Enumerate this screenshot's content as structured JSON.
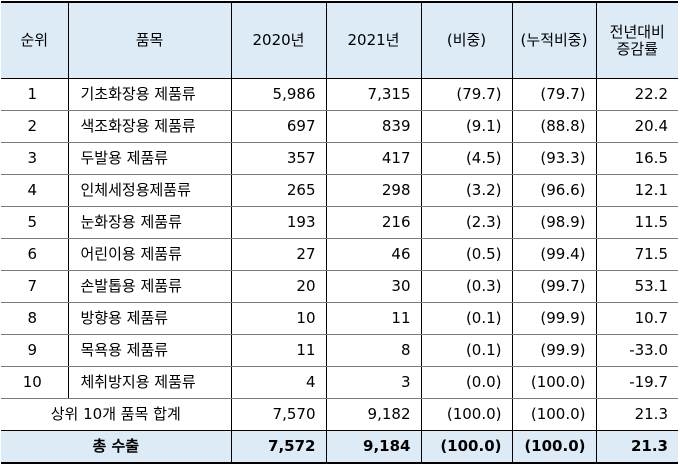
{
  "header": {
    "rank": "순위",
    "item": "품목",
    "y2020": "2020년",
    "y2021": "2021년",
    "share": "(비중)",
    "cumulative": "(누적비중)",
    "growth_line1": "전년대비",
    "growth_line2": "증감률"
  },
  "rows": [
    {
      "rank": "1",
      "item": "기초화장용 제품류",
      "y2020": "5,986",
      "y2021": "7,315",
      "share": "(79.7)",
      "cum": "(79.7)",
      "growth": "22.2"
    },
    {
      "rank": "2",
      "item": "색조화장용 제품류",
      "y2020": "697",
      "y2021": "839",
      "share": "(9.1)",
      "cum": "(88.8)",
      "growth": "20.4"
    },
    {
      "rank": "3",
      "item": "두발용 제품류",
      "y2020": "357",
      "y2021": "417",
      "share": "(4.5)",
      "cum": "(93.3)",
      "growth": "16.5"
    },
    {
      "rank": "4",
      "item": "인체세정용제품류",
      "y2020": "265",
      "y2021": "298",
      "share": "(3.2)",
      "cum": "(96.6)",
      "growth": "12.1"
    },
    {
      "rank": "5",
      "item": "눈화장용 제품류",
      "y2020": "193",
      "y2021": "216",
      "share": "(2.3)",
      "cum": "(98.9)",
      "growth": "11.5"
    },
    {
      "rank": "6",
      "item": "어린이용 제품류",
      "y2020": "27",
      "y2021": "46",
      "share": "(0.5)",
      "cum": "(99.4)",
      "growth": "71.5"
    },
    {
      "rank": "7",
      "item": "손발톱용 제품류",
      "y2020": "20",
      "y2021": "30",
      "share": "(0.3)",
      "cum": "(99.7)",
      "growth": "53.1"
    },
    {
      "rank": "8",
      "item": "방향용 제품류",
      "y2020": "10",
      "y2021": "11",
      "share": "(0.1)",
      "cum": "(99.9)",
      "growth": "10.7"
    },
    {
      "rank": "9",
      "item": "목욕용 제품류",
      "y2020": "11",
      "y2021": "8",
      "share": "(0.1)",
      "cum": "(99.9)",
      "growth": "-33.0"
    },
    {
      "rank": "10",
      "item": "체취방지용 제품류",
      "y2020": "4",
      "y2021": "3",
      "share": "(0.0)",
      "cum": "(100.0)",
      "growth": "-19.7"
    }
  ],
  "subtotal": {
    "label": "상위 10개 품목 합계",
    "y2020": "7,570",
    "y2021": "9,182",
    "share": "(100.0)",
    "cum": "(100.0)",
    "growth": "21.3"
  },
  "total": {
    "label": "총 수출",
    "y2020": "7,572",
    "y2021": "9,184",
    "share": "(100.0)",
    "cum": "(100.0)",
    "growth": "21.3"
  }
}
